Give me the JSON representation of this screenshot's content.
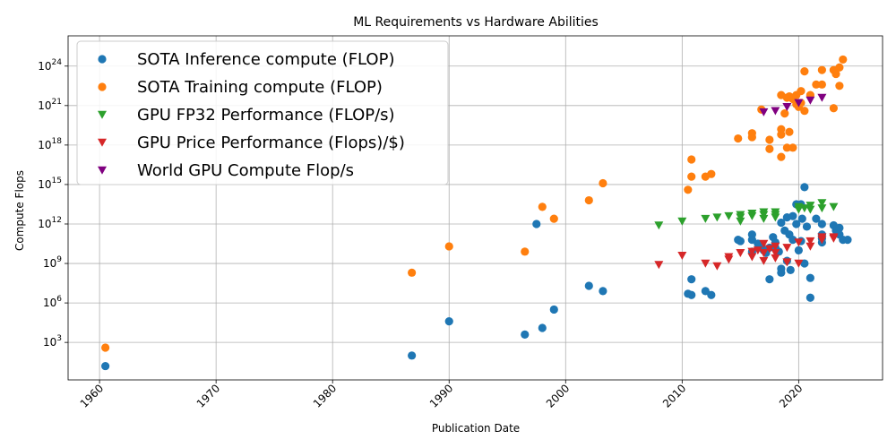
{
  "chart_data": {
    "type": "scatter",
    "title": "ML Requirements vs Hardware Abilities",
    "xlabel": "Publication Date",
    "ylabel": "Compute Flops",
    "xlim": [
      1957.3,
      2027.2
    ],
    "ylim_log10": [
      0.15,
      26.3
    ],
    "y_scale": "log",
    "grid": true,
    "legend_position": "top-left",
    "x_ticks": [
      {
        "value": 1960,
        "label": "1960"
      },
      {
        "value": 1970,
        "label": "1970"
      },
      {
        "value": 1980,
        "label": "1980"
      },
      {
        "value": 1990,
        "label": "1990"
      },
      {
        "value": 2000,
        "label": "2000"
      },
      {
        "value": 2010,
        "label": "2010"
      },
      {
        "value": 2020,
        "label": "2020"
      }
    ],
    "y_ticks": [
      {
        "exp": 3,
        "label": "10^3"
      },
      {
        "exp": 6,
        "label": "10^6"
      },
      {
        "exp": 9,
        "label": "10^9"
      },
      {
        "exp": 12,
        "label": "10^12"
      },
      {
        "exp": 15,
        "label": "10^15"
      },
      {
        "exp": 18,
        "label": "10^18"
      },
      {
        "exp": 21,
        "label": "10^21"
      },
      {
        "exp": 24,
        "label": "10^24"
      }
    ],
    "series": [
      {
        "name": "SOTA Inference compute (FLOP)",
        "color": "#1f77b4",
        "marker": "circle",
        "points": [
          [
            1960.5,
            1.2
          ],
          [
            1986.8,
            2.0
          ],
          [
            1990.0,
            4.6
          ],
          [
            1996.5,
            3.6
          ],
          [
            1997.5,
            12.0
          ],
          [
            1998.0,
            4.1
          ],
          [
            1999.0,
            5.5
          ],
          [
            2002.0,
            7.3
          ],
          [
            2003.2,
            6.9
          ],
          [
            2010.5,
            6.7
          ],
          [
            2010.8,
            7.8
          ],
          [
            2010.8,
            6.6
          ],
          [
            2012.0,
            6.9
          ],
          [
            2012.5,
            6.6
          ],
          [
            2014.8,
            10.8
          ],
          [
            2015.0,
            10.7
          ],
          [
            2016.0,
            11.2
          ],
          [
            2016.0,
            10.8
          ],
          [
            2016.0,
            9.9
          ],
          [
            2016.5,
            10.5
          ],
          [
            2016.8,
            10.3
          ],
          [
            2017.0,
            10.0
          ],
          [
            2017.2,
            9.8
          ],
          [
            2017.5,
            7.8
          ],
          [
            2017.5,
            10.2
          ],
          [
            2017.8,
            11.0
          ],
          [
            2018.0,
            10.6
          ],
          [
            2018.0,
            10.2
          ],
          [
            2018.3,
            9.9
          ],
          [
            2018.5,
            12.1
          ],
          [
            2018.5,
            8.6
          ],
          [
            2018.5,
            8.3
          ],
          [
            2018.8,
            11.5
          ],
          [
            2019.0,
            9.2
          ],
          [
            2019.0,
            12.5
          ],
          [
            2019.2,
            11.2
          ],
          [
            2019.3,
            8.5
          ],
          [
            2019.5,
            12.6
          ],
          [
            2019.5,
            10.8
          ],
          [
            2019.8,
            13.5
          ],
          [
            2019.8,
            12.0
          ],
          [
            2020.0,
            10.0
          ],
          [
            2020.2,
            13.5
          ],
          [
            2020.2,
            10.7
          ],
          [
            2020.3,
            12.4
          ],
          [
            2020.5,
            14.8
          ],
          [
            2020.5,
            9.0
          ],
          [
            2020.7,
            11.8
          ],
          [
            2021.0,
            7.9
          ],
          [
            2021.0,
            6.4
          ],
          [
            2021.5,
            12.4
          ],
          [
            2022.0,
            12.0
          ],
          [
            2022.0,
            11.2
          ],
          [
            2022.0,
            10.9
          ],
          [
            2022.0,
            10.6
          ],
          [
            2023.0,
            11.9
          ],
          [
            2023.2,
            11.5
          ],
          [
            2023.5,
            11.7
          ],
          [
            2023.5,
            11.2
          ],
          [
            2023.8,
            10.8
          ],
          [
            2024.2,
            10.8
          ]
        ]
      },
      {
        "name": "SOTA Training compute (FLOP)",
        "color": "#ff7f0e",
        "marker": "circle",
        "points": [
          [
            1960.5,
            2.6
          ],
          [
            1986.8,
            8.3
          ],
          [
            1990.0,
            10.3
          ],
          [
            1996.5,
            9.9
          ],
          [
            1998.0,
            13.3
          ],
          [
            1999.0,
            12.4
          ],
          [
            2002.0,
            13.8
          ],
          [
            2003.2,
            15.1
          ],
          [
            2010.5,
            14.6
          ],
          [
            2010.8,
            15.6
          ],
          [
            2010.8,
            16.9
          ],
          [
            2012.0,
            15.6
          ],
          [
            2012.5,
            15.8
          ],
          [
            2014.8,
            18.5
          ],
          [
            2016.0,
            18.9
          ],
          [
            2016.0,
            18.6
          ],
          [
            2016.8,
            20.7
          ],
          [
            2017.5,
            18.4
          ],
          [
            2017.5,
            17.7
          ],
          [
            2018.5,
            21.8
          ],
          [
            2018.5,
            19.2
          ],
          [
            2018.5,
            18.8
          ],
          [
            2018.5,
            17.1
          ],
          [
            2018.8,
            20.4
          ],
          [
            2019.0,
            21.6
          ],
          [
            2019.0,
            17.8
          ],
          [
            2019.2,
            21.7
          ],
          [
            2019.2,
            19.0
          ],
          [
            2019.5,
            21.5
          ],
          [
            2019.5,
            17.8
          ],
          [
            2019.8,
            21.8
          ],
          [
            2019.8,
            21.1
          ],
          [
            2020.0,
            20.9
          ],
          [
            2020.2,
            22.1
          ],
          [
            2020.2,
            21.2
          ],
          [
            2020.5,
            23.6
          ],
          [
            2020.5,
            20.6
          ],
          [
            2021.0,
            21.8
          ],
          [
            2021.5,
            22.6
          ],
          [
            2022.0,
            23.7
          ],
          [
            2022.0,
            22.6
          ],
          [
            2023.0,
            23.7
          ],
          [
            2023.2,
            23.4
          ],
          [
            2023.5,
            23.9
          ],
          [
            2023.5,
            22.5
          ],
          [
            2023.8,
            24.5
          ],
          [
            2023.0,
            20.8
          ]
        ]
      },
      {
        "name": "GPU FP32 Performance (FLOP/s)",
        "color": "#2ca02c",
        "marker": "triangle-down",
        "points": [
          [
            2008.0,
            11.9
          ],
          [
            2010.0,
            12.2
          ],
          [
            2012.0,
            12.4
          ],
          [
            2013.0,
            12.5
          ],
          [
            2014.0,
            12.6
          ],
          [
            2015.0,
            12.7
          ],
          [
            2015.0,
            12.5
          ],
          [
            2015.0,
            12.2
          ],
          [
            2016.0,
            12.8
          ],
          [
            2016.0,
            12.6
          ],
          [
            2017.0,
            12.9
          ],
          [
            2017.0,
            12.7
          ],
          [
            2017.0,
            12.4
          ],
          [
            2018.0,
            12.9
          ],
          [
            2018.0,
            12.7
          ],
          [
            2018.0,
            12.5
          ],
          [
            2020.0,
            13.3
          ],
          [
            2020.0,
            13.1
          ],
          [
            2020.5,
            13.2
          ],
          [
            2021.0,
            13.4
          ],
          [
            2021.0,
            13.1
          ],
          [
            2022.0,
            13.6
          ],
          [
            2022.0,
            13.2
          ],
          [
            2023.0,
            13.3
          ]
        ]
      },
      {
        "name": "GPU Price Performance (Flops)/$)",
        "color": "#d62728",
        "marker": "triangle-down",
        "points": [
          [
            2008.0,
            8.9
          ],
          [
            2010.0,
            9.6
          ],
          [
            2012.0,
            9.0
          ],
          [
            2013.0,
            8.8
          ],
          [
            2014.0,
            9.3
          ],
          [
            2014.0,
            9.5
          ],
          [
            2015.0,
            9.8
          ],
          [
            2016.0,
            9.9
          ],
          [
            2016.0,
            9.5
          ],
          [
            2016.5,
            10.0
          ],
          [
            2017.0,
            9.8
          ],
          [
            2017.0,
            10.5
          ],
          [
            2017.0,
            9.2
          ],
          [
            2017.5,
            10.1
          ],
          [
            2018.0,
            10.3
          ],
          [
            2018.0,
            9.8
          ],
          [
            2018.0,
            9.4
          ],
          [
            2019.0,
            10.2
          ],
          [
            2019.0,
            9.1
          ],
          [
            2020.0,
            10.6
          ],
          [
            2020.0,
            9.0
          ],
          [
            2021.0,
            10.7
          ],
          [
            2021.0,
            10.3
          ],
          [
            2022.0,
            11.0
          ],
          [
            2022.0,
            10.8
          ],
          [
            2023.0,
            11.0
          ],
          [
            2023.0,
            10.9
          ]
        ]
      },
      {
        "name": "World GPU Compute Flop/s",
        "color": "#800080",
        "marker": "triangle-down",
        "points": [
          [
            2017.0,
            20.5
          ],
          [
            2018.0,
            20.6
          ],
          [
            2019.0,
            20.9
          ],
          [
            2020.0,
            21.2
          ],
          [
            2021.0,
            21.4
          ],
          [
            2022.0,
            21.6
          ]
        ]
      }
    ]
  }
}
